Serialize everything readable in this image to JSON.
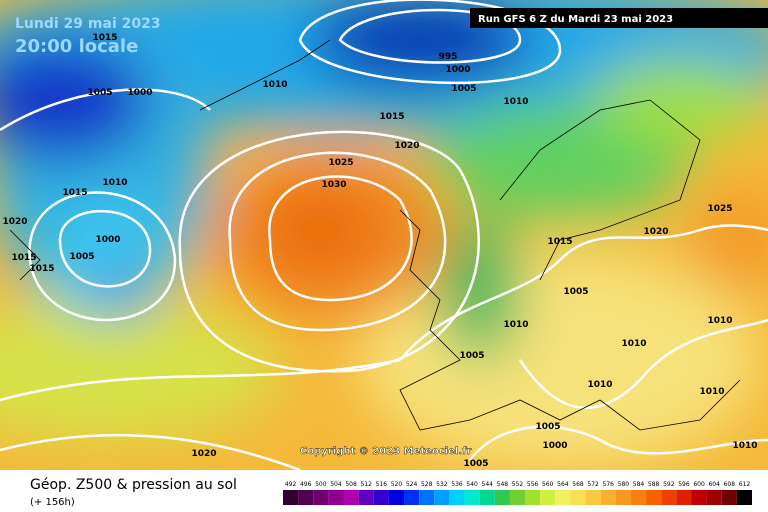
{
  "header": {
    "date": "Lundi 29 mai 2023",
    "time": "20:00 locale",
    "run": "Run GFS 6 Z du Mardi 23 mai 2023"
  },
  "copyright": "Copyright © 2023 Meteociel.fr",
  "footer": {
    "title": "Géop. Z500 & pression au sol",
    "lead": "(+ 156h)"
  },
  "legend": {
    "labels": [
      492,
      496,
      500,
      504,
      508,
      512,
      516,
      520,
      524,
      528,
      532,
      536,
      540,
      544,
      548,
      552,
      556,
      560,
      564,
      568,
      572,
      576,
      580,
      584,
      588,
      592,
      596,
      600,
      604,
      608,
      612
    ]
  },
  "isobars": [
    1015,
    1005,
    1000,
    1010,
    995,
    1000,
    1005,
    1010,
    1015,
    1020,
    1025,
    1030,
    1015,
    1010,
    1020,
    1000,
    1005,
    1015,
    1015,
    1015,
    1020,
    1025,
    1005,
    1010,
    1005,
    1010,
    1010,
    1010,
    1010,
    1005,
    1000,
    1005,
    1020,
    1010
  ]
}
